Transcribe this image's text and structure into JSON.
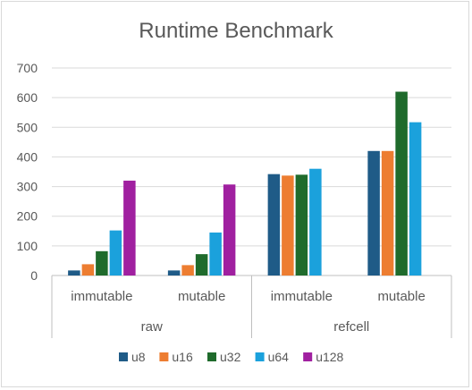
{
  "chart_data": {
    "type": "bar",
    "title": "Runtime Benchmark",
    "xlabel": "",
    "ylabel": "",
    "ylim": [
      0,
      700
    ],
    "yticks": [
      0,
      100,
      200,
      300,
      400,
      500,
      600,
      700
    ],
    "grid": true,
    "legend_position": "bottom",
    "groups": [
      {
        "label": "raw",
        "categories": [
          "immutable",
          "mutable"
        ]
      },
      {
        "label": "refcell",
        "categories": [
          "immutable",
          "mutable"
        ]
      }
    ],
    "categories": [
      "immutable",
      "mutable",
      "immutable",
      "mutable"
    ],
    "series": [
      {
        "name": "u8",
        "color": "#1f5b87",
        "values": [
          17,
          17,
          342,
          420
        ]
      },
      {
        "name": "u16",
        "color": "#ed7d31",
        "values": [
          38,
          35,
          337,
          420
        ]
      },
      {
        "name": "u32",
        "color": "#1f6b2c",
        "values": [
          82,
          72,
          340,
          620
        ]
      },
      {
        "name": "u64",
        "color": "#1ba1dc",
        "values": [
          152,
          145,
          360,
          517
        ]
      },
      {
        "name": "u128",
        "color": "#a020a0",
        "values": [
          320,
          307,
          null,
          null
        ]
      }
    ]
  }
}
